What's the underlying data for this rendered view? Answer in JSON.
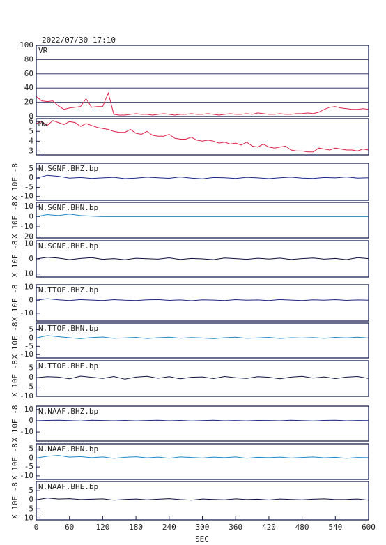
{
  "chart_data": [
    {
      "type": "line",
      "title": "2022/07/30 17:10",
      "label": "VR",
      "color": "#e0204a",
      "grid": true,
      "x": [
        0,
        10,
        20,
        30,
        40,
        50,
        60,
        70,
        80,
        90,
        100,
        110,
        120,
        130,
        140,
        150,
        160,
        170,
        180,
        190,
        200,
        210,
        220,
        230,
        240,
        250,
        260,
        270,
        280,
        290,
        300,
        310,
        320,
        330,
        340,
        350,
        360,
        370,
        380,
        390,
        400,
        410,
        420,
        430,
        440,
        450,
        460,
        470,
        480,
        490,
        500,
        510,
        520,
        530,
        540,
        550,
        560,
        570,
        580,
        590,
        600
      ],
      "values": [
        28,
        22,
        21,
        22,
        15,
        10,
        12,
        13,
        14,
        25,
        13,
        14,
        14,
        33,
        3,
        2,
        2,
        3,
        4,
        3,
        3,
        2,
        3,
        4,
        3,
        2,
        3,
        3,
        4,
        3,
        3,
        4,
        3,
        2,
        3,
        4,
        3,
        3,
        4,
        3,
        5,
        4,
        3,
        3,
        4,
        3,
        3,
        4,
        4,
        5,
        4,
        6,
        10,
        13,
        14,
        12,
        11,
        10,
        10,
        11,
        10
      ],
      "xlim": [
        0,
        600
      ],
      "ylim": [
        0,
        100
      ],
      "yticks": [
        0,
        20,
        40,
        60,
        80,
        100
      ]
    },
    {
      "type": "line",
      "label": "Mw",
      "color": "#e0204a",
      "x": [
        0,
        10,
        20,
        30,
        40,
        50,
        60,
        70,
        80,
        90,
        100,
        110,
        120,
        130,
        140,
        150,
        160,
        170,
        180,
        190,
        200,
        210,
        220,
        230,
        240,
        250,
        260,
        270,
        280,
        290,
        300,
        310,
        320,
        330,
        340,
        350,
        360,
        370,
        380,
        390,
        400,
        410,
        420,
        430,
        440,
        450,
        460,
        470,
        480,
        490,
        500,
        510,
        520,
        530,
        540,
        550,
        560,
        570,
        580,
        590,
        600
      ],
      "values": [
        5.8,
        6.0,
        5.6,
        6.1,
        5.9,
        5.7,
        6.0,
        5.9,
        5.5,
        5.8,
        5.6,
        5.4,
        5.3,
        5.2,
        5.0,
        4.9,
        4.9,
        5.2,
        4.8,
        4.7,
        5.0,
        4.6,
        4.5,
        4.5,
        4.7,
        4.3,
        4.2,
        4.2,
        4.4,
        4.1,
        4.0,
        4.1,
        4.0,
        3.8,
        3.9,
        3.7,
        3.8,
        3.6,
        3.9,
        3.5,
        3.4,
        3.7,
        3.4,
        3.3,
        3.4,
        3.5,
        3.1,
        3.0,
        3.0,
        2.9,
        2.9,
        3.3,
        3.2,
        3.1,
        3.3,
        3.2,
        3.1,
        3.1,
        3.0,
        3.2,
        3.1
      ],
      "xlim": [
        0,
        600
      ],
      "ylim": [
        2.6,
        6.3
      ],
      "yticks": [
        3,
        4,
        5,
        6
      ]
    },
    {
      "type": "line",
      "label": "N.SGNF.BHZ.bp",
      "ylabel": "X 10E -8",
      "color": "#1a2a8a",
      "x": [
        0,
        20,
        40,
        60,
        80,
        100,
        120,
        140,
        160,
        180,
        200,
        220,
        240,
        260,
        280,
        300,
        320,
        340,
        360,
        380,
        400,
        420,
        440,
        460,
        480,
        500,
        520,
        540,
        560,
        580,
        600
      ],
      "values": [
        0,
        1.5,
        1,
        0,
        0.3,
        -0.2,
        0.1,
        0.4,
        -0.3,
        0,
        0.5,
        0.2,
        -0.1,
        0.6,
        0,
        -0.4,
        0.3,
        0.2,
        -0.2,
        0.4,
        0.1,
        -0.3,
        0.2,
        0.5,
        0,
        -0.2,
        0.3,
        0.1,
        0.6,
        0,
        0.2
      ],
      "xlim": [
        0,
        600
      ],
      "ylim": [
        -12,
        8
      ],
      "yticks": [
        5,
        0,
        -5,
        -10
      ]
    },
    {
      "type": "line",
      "label": "N.SGNF.BHN.bp",
      "ylabel": "X 10E -8",
      "color": "#1e88c8",
      "x": [
        0,
        20,
        40,
        60,
        80,
        100,
        120,
        140,
        160,
        180,
        200,
        220,
        240,
        260,
        280,
        300,
        320,
        340,
        360,
        380,
        400,
        420,
        440,
        460,
        480,
        500,
        520,
        540,
        560,
        580,
        600
      ],
      "values": [
        0,
        2,
        1,
        2.5,
        1,
        0.5,
        0,
        0,
        0,
        0,
        0,
        0,
        0,
        0,
        0,
        0,
        0,
        0,
        0,
        0,
        0,
        0,
        0,
        0,
        0,
        0,
        0,
        0,
        0,
        0,
        0
      ],
      "xlim": [
        0,
        600
      ],
      "ylim": [
        -21,
        14
      ],
      "yticks": [
        10,
        0,
        -10,
        -20
      ]
    },
    {
      "type": "line",
      "label": "N.SGNF.BHE.bp",
      "ylabel": "X 10E -8",
      "color": "#101040",
      "x": [
        0,
        20,
        40,
        60,
        80,
        100,
        120,
        140,
        160,
        180,
        200,
        220,
        240,
        260,
        280,
        300,
        320,
        340,
        360,
        380,
        400,
        420,
        440,
        460,
        480,
        500,
        520,
        540,
        560,
        580,
        600
      ],
      "values": [
        0,
        1,
        0.5,
        -0.5,
        0.3,
        0.8,
        -0.3,
        0.2,
        -0.6,
        0.4,
        0.1,
        -0.2,
        0.7,
        -0.4,
        0.3,
        0,
        -0.5,
        0.6,
        0.2,
        -0.3,
        0.4,
        -0.1,
        0.5,
        -0.4,
        0.2,
        0.6,
        -0.2,
        0.3,
        -0.5,
        0.8,
        0.2
      ],
      "xlim": [
        0,
        600
      ],
      "ylim": [
        -12,
        12
      ],
      "yticks": [
        10,
        0,
        -10
      ]
    },
    {
      "type": "line",
      "label": "N.TTOF.BHZ.bp",
      "ylabel": "X 10E -8",
      "color": "#1a2a8a",
      "x": [
        0,
        20,
        40,
        60,
        80,
        100,
        120,
        140,
        160,
        180,
        200,
        220,
        240,
        260,
        280,
        300,
        320,
        340,
        360,
        380,
        400,
        420,
        440,
        460,
        480,
        500,
        520,
        540,
        560,
        580,
        600
      ],
      "values": [
        0,
        1.2,
        0.3,
        -0.2,
        0.5,
        0.1,
        -0.3,
        0.4,
        0,
        -0.2,
        0.3,
        0.5,
        -0.1,
        0.2,
        -0.4,
        0.3,
        0.1,
        -0.2,
        0.4,
        0,
        0.2,
        -0.3,
        0.5,
        0.1,
        -0.2,
        0.3,
        0,
        0.4,
        -0.1,
        0.2,
        0
      ],
      "xlim": [
        0,
        600
      ],
      "ylim": [
        -16,
        12
      ],
      "yticks": [
        10,
        0,
        -10
      ]
    },
    {
      "type": "line",
      "label": "N.TTOF.BHN.bp",
      "ylabel": "X 10E -8",
      "color": "#1e88c8",
      "x": [
        0,
        20,
        40,
        60,
        80,
        100,
        120,
        140,
        160,
        180,
        200,
        220,
        240,
        260,
        280,
        300,
        320,
        340,
        360,
        380,
        400,
        420,
        440,
        460,
        480,
        500,
        520,
        540,
        560,
        580,
        600
      ],
      "values": [
        0,
        1.5,
        0.8,
        0.2,
        -0.4,
        0.3,
        0.6,
        -0.2,
        0.1,
        0.4,
        -0.3,
        0.2,
        0.5,
        -0.1,
        0.3,
        0,
        -0.4,
        0.2,
        0.5,
        -0.2,
        0.1,
        0.4,
        -0.3,
        0.2,
        0,
        0.3,
        -0.2,
        0.4,
        0.1,
        0.5,
        0
      ],
      "xlim": [
        0,
        600
      ],
      "ylim": [
        -12,
        9
      ],
      "yticks": [
        5,
        0,
        -5,
        -10
      ]
    },
    {
      "type": "line",
      "label": "N.TTOF.BHE.bp",
      "ylabel": "X 10E -8",
      "color": "#101040",
      "x": [
        0,
        20,
        40,
        60,
        80,
        100,
        120,
        140,
        160,
        180,
        200,
        220,
        240,
        260,
        280,
        300,
        320,
        340,
        360,
        380,
        400,
        420,
        440,
        460,
        480,
        500,
        520,
        540,
        560,
        580,
        600
      ],
      "values": [
        0,
        0.5,
        0.3,
        -0.6,
        0.8,
        0.2,
        -0.4,
        0.6,
        -0.8,
        0.3,
        0.7,
        -0.3,
        0.5,
        -0.6,
        0.2,
        0.4,
        -0.5,
        0.6,
        0,
        -0.4,
        0.5,
        0.2,
        -0.6,
        0.3,
        0.7,
        -0.2,
        0.4,
        -0.5,
        0.3,
        0.6,
        -0.4
      ],
      "xlim": [
        0,
        600
      ],
      "ylim": [
        -10,
        9
      ],
      "yticks": [
        5,
        0,
        -5,
        -10
      ]
    },
    {
      "type": "line",
      "label": "N.NAAF.BHZ.bp",
      "ylabel": "X 10E -8",
      "color": "#1a2a8a",
      "x": [
        0,
        20,
        40,
        60,
        80,
        100,
        120,
        140,
        160,
        180,
        200,
        220,
        240,
        260,
        280,
        300,
        320,
        340,
        360,
        380,
        400,
        420,
        440,
        460,
        480,
        500,
        520,
        540,
        560,
        580,
        600
      ],
      "values": [
        0,
        0.3,
        0.5,
        0.1,
        -0.2,
        0.4,
        0.2,
        0,
        0.3,
        -0.1,
        0.2,
        0.5,
        0,
        0.3,
        -0.2,
        0.1,
        0.4,
        0,
        0.2,
        -0.1,
        0.3,
        0.2,
        0,
        0.4,
        0.1,
        -0.2,
        0.3,
        0.5,
        0,
        0.2,
        0.1
      ],
      "xlim": [
        0,
        600
      ],
      "ylim": [
        -18,
        13
      ],
      "yticks": [
        10,
        0,
        -10
      ]
    },
    {
      "type": "line",
      "label": "N.NAAF.BHN.bp",
      "ylabel": "X 10E -8",
      "color": "#1e88c8",
      "x": [
        0,
        20,
        40,
        60,
        80,
        100,
        120,
        140,
        160,
        180,
        200,
        220,
        240,
        260,
        280,
        300,
        320,
        340,
        360,
        380,
        400,
        420,
        440,
        460,
        480,
        500,
        520,
        540,
        560,
        580,
        600
      ],
      "values": [
        0,
        1,
        1.5,
        0.5,
        0.8,
        0.2,
        0.6,
        -0.2,
        0.4,
        0.7,
        0.1,
        0.5,
        -0.1,
        0.6,
        0.3,
        0,
        0.5,
        0.2,
        0.6,
        -0.1,
        0.4,
        0.2,
        0.5,
        0,
        0.3,
        0.6,
        0.1,
        0.4,
        -0.2,
        0.3,
        0.2
      ],
      "xlim": [
        0,
        600
      ],
      "ylim": [
        -12,
        8
      ],
      "yticks": [
        5,
        0,
        -5,
        -10
      ]
    },
    {
      "type": "line",
      "label": "N.NAAF.BHE.bp",
      "ylabel": "X 10E -8",
      "xlabel": "SEC",
      "color": "#101040",
      "x": [
        0,
        20,
        40,
        60,
        80,
        100,
        120,
        140,
        160,
        180,
        200,
        220,
        240,
        260,
        280,
        300,
        320,
        340,
        360,
        380,
        400,
        420,
        440,
        460,
        480,
        500,
        520,
        540,
        560,
        580,
        600
      ],
      "values": [
        0,
        1,
        0.4,
        0.6,
        0.1,
        0.3,
        0.5,
        -0.2,
        0.2,
        0.4,
        0,
        0.3,
        0.6,
        0.1,
        -0.2,
        0.4,
        0.2,
        0,
        0.5,
        0.1,
        0.3,
        -0.1,
        0.4,
        0.2,
        0,
        0.3,
        0.5,
        0.1,
        0.2,
        0.4,
        -0.2
      ],
      "xlim": [
        0,
        600
      ],
      "ylim": [
        -11,
        10
      ],
      "yticks": [
        5,
        0,
        -5,
        -10
      ],
      "xticks": [
        0,
        60,
        120,
        180,
        240,
        300,
        360,
        420,
        480,
        540,
        600
      ]
    }
  ]
}
